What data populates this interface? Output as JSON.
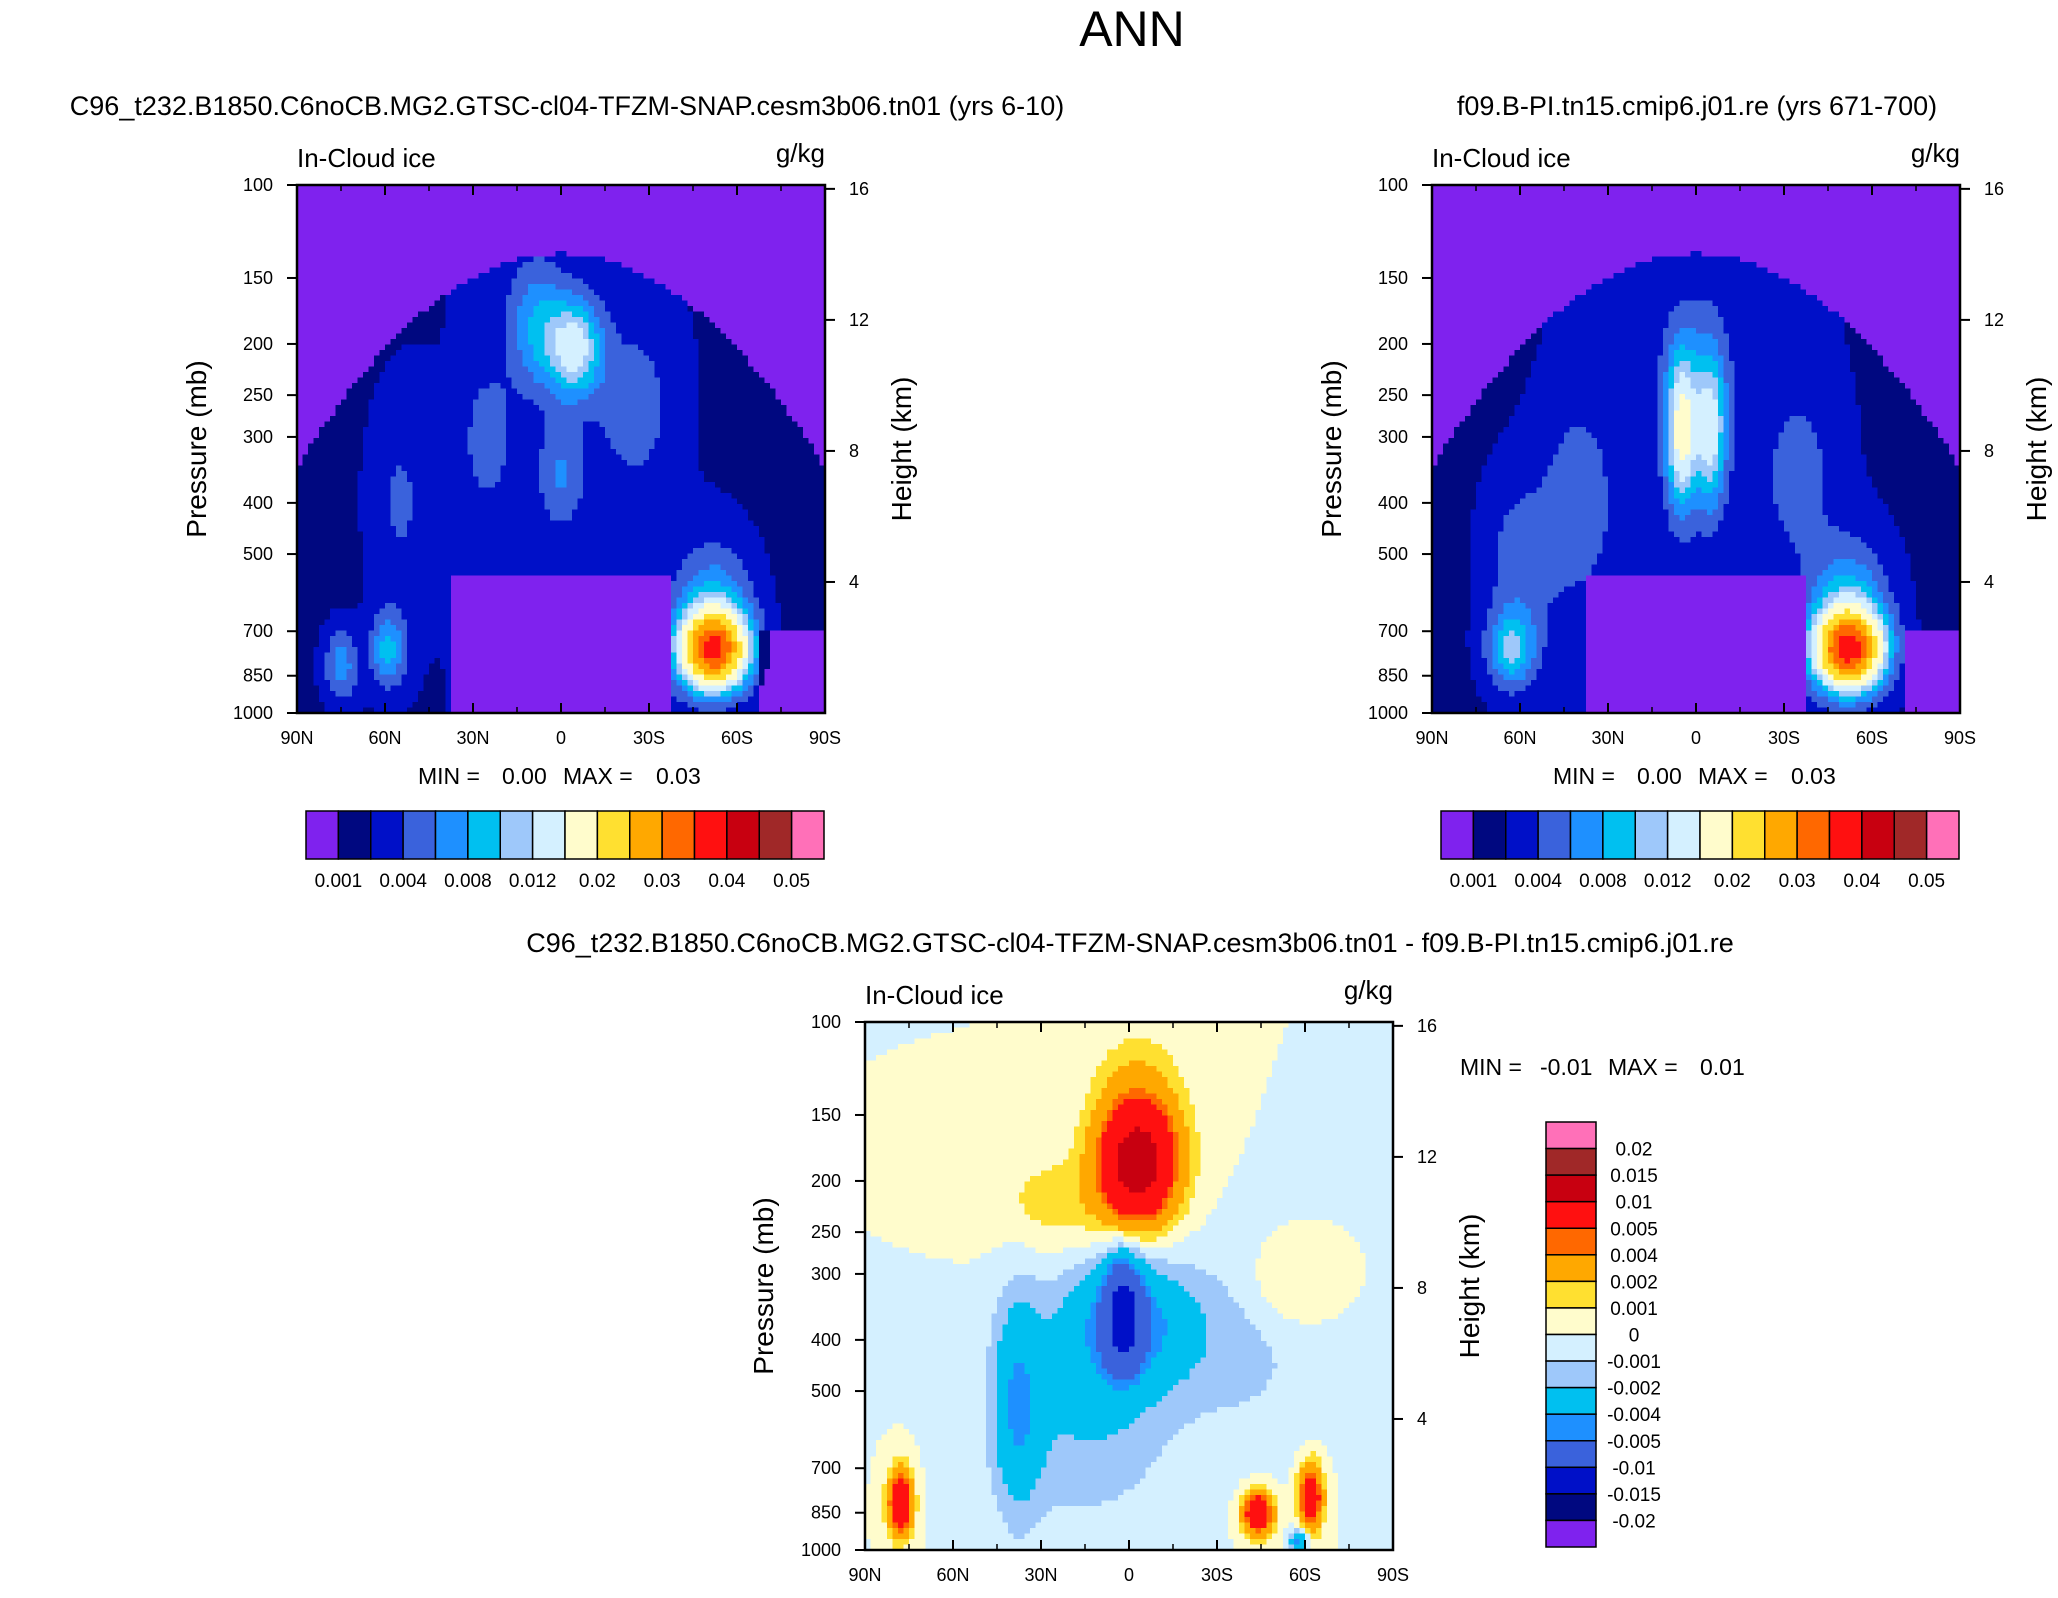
{
  "figure": {
    "title": "ANN"
  },
  "colors": {
    "abs_levels": [
      "#7f22ee",
      "#000880",
      "#0010c8",
      "#3a62dc",
      "#1e90ff",
      "#00c0f0",
      "#9ec8fa",
      "#d4f0ff",
      "#fffccc",
      "#ffe030",
      "#ffa800",
      "#ff6800",
      "#ff1010",
      "#c80010",
      "#a02828",
      "#ff70b8"
    ],
    "diff_levels": [
      "#7f22ee",
      "#000880",
      "#0010c8",
      "#3a62dc",
      "#1e90ff",
      "#00c0f0",
      "#9ec8fa",
      "#d4f0ff",
      "#fffccc",
      "#ffe030",
      "#ffa800",
      "#ff6800",
      "#ff1010",
      "#c80010",
      "#a02828",
      "#ff70b8"
    ]
  },
  "chart_data": [
    {
      "type": "heatmap",
      "panel_title": "C96_t232.B1850.C6noCB.MG2.GTSC-cl04-TFZM-SNAP.cesm3b06.tn01 (yrs 6-10)",
      "variable": "In-Cloud ice",
      "units": "g/kg",
      "xlabel": "",
      "ylabel": "Pressure (mb)",
      "y2label": "Height (km)",
      "x_ticks": [
        "90N",
        "60N",
        "30N",
        "0",
        "30S",
        "60S",
        "90S"
      ],
      "y_ticks": [
        "100",
        "150",
        "200",
        "250",
        "300",
        "400",
        "500",
        "700",
        "850",
        "1000"
      ],
      "y2_ticks": [
        "16",
        "12",
        "8",
        "4"
      ],
      "min_label": "MIN =",
      "min_value": "0.00",
      "max_label": "MAX =",
      "max_value": "0.03",
      "colorbar_labels": [
        "0.001",
        "0.004",
        "0.008",
        "0.012",
        "0.02",
        "0.03",
        "0.04",
        "0.05"
      ],
      "field": "abs_a"
    },
    {
      "type": "heatmap",
      "panel_title": "f09.B-PI.tn15.cmip6.j01.re (yrs 671-700)",
      "variable": "In-Cloud ice",
      "units": "g/kg",
      "xlabel": "",
      "ylabel": "Pressure (mb)",
      "y2label": "Height (km)",
      "x_ticks": [
        "90N",
        "60N",
        "30N",
        "0",
        "30S",
        "60S",
        "90S"
      ],
      "y_ticks": [
        "100",
        "150",
        "200",
        "250",
        "300",
        "400",
        "500",
        "700",
        "850",
        "1000"
      ],
      "y2_ticks": [
        "16",
        "12",
        "8",
        "4"
      ],
      "min_label": "MIN =",
      "min_value": "0.00",
      "max_label": "MAX =",
      "max_value": "0.03",
      "colorbar_labels": [
        "0.001",
        "0.004",
        "0.008",
        "0.012",
        "0.02",
        "0.03",
        "0.04",
        "0.05"
      ],
      "field": "abs_b"
    },
    {
      "type": "heatmap",
      "panel_title": "C96_t232.B1850.C6noCB.MG2.GTSC-cl04-TFZM-SNAP.cesm3b06.tn01 - f09.B-PI.tn15.cmip6.j01.re",
      "variable": "In-Cloud ice",
      "units": "g/kg",
      "xlabel": "",
      "ylabel": "Pressure (mb)",
      "y2label": "Height (km)",
      "x_ticks": [
        "90N",
        "60N",
        "30N",
        "0",
        "30S",
        "60S",
        "90S"
      ],
      "y_ticks": [
        "100",
        "150",
        "200",
        "250",
        "300",
        "400",
        "500",
        "700",
        "850",
        "1000"
      ],
      "y2_ticks": [
        "16",
        "12",
        "8",
        "4"
      ],
      "min_label": "MIN =",
      "min_value": "-0.01",
      "max_label": "MAX =",
      "max_value": "0.01",
      "colorbar_labels": [
        "0.02",
        "0.015",
        "0.01",
        "0.005",
        "0.004",
        "0.002",
        "0.001",
        "0",
        "-0.001",
        "-0.002",
        "-0.004",
        "-0.005",
        "-0.01",
        "-0.015",
        "-0.02"
      ],
      "field": "diff"
    }
  ]
}
